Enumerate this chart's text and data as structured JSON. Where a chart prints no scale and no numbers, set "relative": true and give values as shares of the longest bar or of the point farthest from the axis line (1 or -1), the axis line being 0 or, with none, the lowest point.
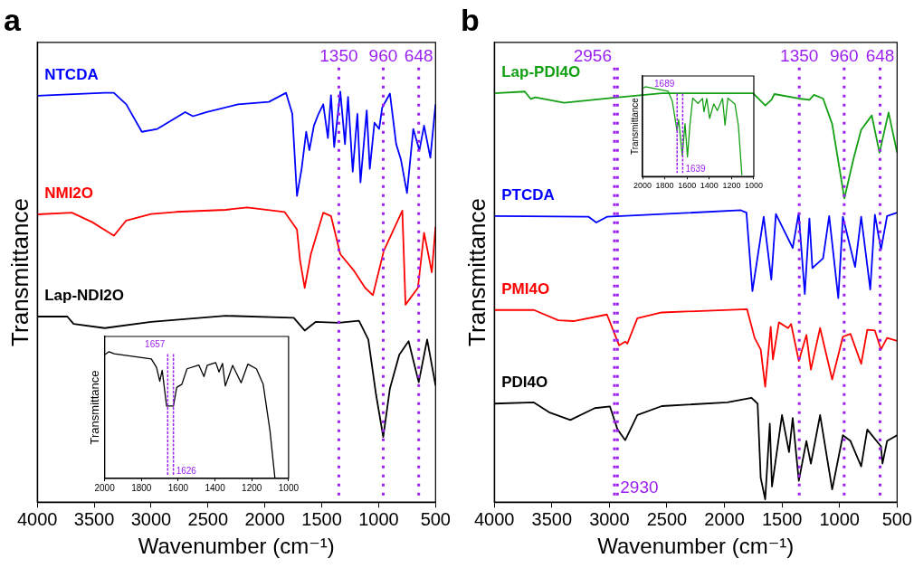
{
  "chart_data": [
    {
      "type": "line",
      "title": "a",
      "xlabel": "Wavenumber (cm⁻¹)",
      "ylabel": "Transmittance",
      "relative": true,
      "tick_labels": "x",
      "legend": false,
      "grid": false,
      "marker": "none",
      "line_style": "solid",
      "xlim": [
        4000,
        500
      ],
      "xticks": [
        4000,
        3500,
        3000,
        2500,
        2000,
        1500,
        1000,
        500
      ],
      "series": [
        {
          "name": "NTCDA",
          "color": "#0000ff",
          "x": [
            4000,
            3408,
            3327,
            3218,
            3081,
            2945,
            2700,
            2632,
            2509,
            2236,
            1964,
            1814,
            1759,
            1718,
            1677,
            1637,
            1609,
            1569,
            1528,
            1487,
            1446,
            1419,
            1391,
            1337,
            1296,
            1269,
            1228,
            1187,
            1160,
            1105,
            1078,
            1037,
            996,
            969,
            901,
            846,
            805,
            751,
            696,
            642,
            601,
            546,
            500
          ],
          "values": [
            0.99,
            0.997,
            0.997,
            0.969,
            0.902,
            0.909,
            0.95,
            0.94,
            0.95,
            0.969,
            0.975,
            0.997,
            0.946,
            0.746,
            0.812,
            0.902,
            0.857,
            0.917,
            0.946,
            0.969,
            0.887,
            0.991,
            0.865,
            1,
            0.872,
            0.987,
            0.805,
            0.946,
            0.779,
            0.954,
            0.812,
            0.924,
            0.909,
            0.961,
            0.995,
            0.872,
            0.835,
            0.753,
            0.909,
            0.857,
            0.917,
            0.839,
            0.969
          ]
        },
        {
          "name": "NMI2O",
          "color": "#ff0000",
          "x": [
            4000,
            3695,
            3517,
            3327,
            3218,
            3000,
            2781,
            2345,
            2155,
            1827,
            1718,
            1691,
            1650,
            1596,
            1487,
            1419,
            1337,
            1215,
            1119,
            1051,
            955,
            792,
            764,
            655,
            601,
            533,
            500
          ],
          "values": [
            0.701,
            0.705,
            0.682,
            0.649,
            0.686,
            0.702,
            0.707,
            0.712,
            0.718,
            0.707,
            0.664,
            0.589,
            0.522,
            0.604,
            0.705,
            0.697,
            0.604,
            0.563,
            0.522,
            0.504,
            0.612,
            0.71,
            0.481,
            0.522,
            0.656,
            0.56,
            0.671
          ]
        },
        {
          "name": "Lap-NDI2O",
          "color": "#000000",
          "x": [
            4000,
            3736,
            3681,
            3408,
            3000,
            2345,
            1746,
            1650,
            1555,
            1351,
            1173,
            1091,
            1023,
            960,
            901,
            819,
            737,
            648,
            574,
            500
          ],
          "values": [
            0.452,
            0.452,
            0.434,
            0.424,
            0.439,
            0.454,
            0.449,
            0.418,
            0.439,
            0.437,
            0.442,
            0.396,
            0.262,
            0.159,
            0.277,
            0.359,
            0.392,
            0.292,
            0.396,
            0.284
          ]
        }
      ],
      "ref_lines": [
        {
          "axis": "x",
          "value": 1350,
          "label": "1350",
          "color": "#9b1ff0",
          "line_style": "dotted"
        },
        {
          "axis": "x",
          "value": 960,
          "label": "960",
          "color": "#9b1ff0",
          "line_style": "dotted"
        },
        {
          "axis": "x",
          "value": 648,
          "label": "648",
          "color": "#9b1ff0",
          "line_style": "dotted"
        }
      ]
    },
    {
      "type": "line",
      "ylabel": "Transmittance",
      "relative": true,
      "tick_labels": "x",
      "legend": false,
      "grid": false,
      "marker": "none",
      "line_style": "solid",
      "xlim": [
        2000,
        1000
      ],
      "xticks": [
        2000,
        1800,
        1600,
        1400,
        1200,
        1000
      ],
      "series": [
        {
          "color": "#000000",
          "x": [
            2000,
            1976,
            1948,
            1746,
            1718,
            1700,
            1687,
            1663,
            1626,
            1608,
            1580,
            1552,
            1488,
            1460,
            1442,
            1396,
            1378,
            1359,
            1344,
            1304,
            1258,
            1221,
            1175,
            1138,
            1101,
            1074
          ],
          "values": [
            0.976,
            1,
            0.983,
            0.943,
            0.877,
            0.767,
            0.853,
            0.571,
            0.571,
            0.718,
            0.743,
            0.865,
            0.895,
            0.804,
            0.892,
            0.914,
            0.84,
            0.907,
            0.73,
            0.892,
            0.755,
            0.902,
            0.865,
            0.743,
            0.375,
            0
          ]
        }
      ],
      "ref_lines": [
        {
          "axis": "x",
          "value": 1657,
          "label": "1657",
          "color": "#9b1ff0",
          "line_style": "dashed"
        },
        {
          "axis": "x",
          "value": 1626,
          "label": "1626",
          "color": "#9b1ff0",
          "line_style": "dashed"
        }
      ]
    },
    {
      "type": "line",
      "title": "b",
      "xlabel": "Wavenumber (cm⁻¹)",
      "ylabel": "Transmittance",
      "relative": true,
      "tick_labels": "x",
      "legend": false,
      "grid": false,
      "marker": "none",
      "line_style": "solid",
      "xlim": [
        4000,
        500
      ],
      "xticks": [
        4000,
        3500,
        3000,
        2500,
        2000,
        1500,
        1000,
        500
      ],
      "series": [
        {
          "name": "Lap-PDI4O",
          "color": "#14a014",
          "x": [
            4000,
            3735,
            3683,
            3643,
            3392,
            2968,
            2545,
            1751,
            1645,
            1592,
            1566,
            1354,
            1262,
            1222,
            1143,
            1064,
            958,
            878,
            812,
            720,
            653,
            574,
            500
          ],
          "values": [
            0.996,
            1,
            0.982,
            0.986,
            0.973,
            0.985,
            0.996,
            0.996,
            0.966,
            0.98,
            0.994,
            0.983,
            0.98,
            0.992,
            0.983,
            0.921,
            0.74,
            0.837,
            0.907,
            0.942,
            0.851,
            0.949,
            0.851
          ]
        },
        {
          "name": "PTCDA",
          "color": "#0000ff",
          "x": [
            4000,
            3180,
            3114,
            3021,
            1857,
            1809,
            1757,
            1659,
            1593,
            1553,
            1407,
            1355,
            1302,
            1262,
            1236,
            1143,
            1090,
            1011,
            971,
            865,
            812,
            733,
            693,
            640,
            587,
            500
          ],
          "values": [
            0.697,
            0.695,
            0.681,
            0.695,
            0.711,
            0.705,
            0.514,
            0.695,
            0.542,
            0.702,
            0.619,
            0.704,
            0.507,
            0.691,
            0.57,
            0.594,
            0.697,
            0.497,
            0.695,
            0.573,
            0.695,
            0.518,
            0.7,
            0.615,
            0.697,
            0.705
          ]
        },
        {
          "name": "PMI4O",
          "color": "#ff0000",
          "x": [
            4000,
            3656,
            3444,
            3312,
            3021,
            2915,
            2862,
            2844,
            2757,
            2545,
            1804,
            1738,
            1685,
            1646,
            1598,
            1579,
            1527,
            1447,
            1421,
            1354,
            1288,
            1249,
            1169,
            1064,
            971,
            905,
            812,
            759,
            693,
            640,
            587,
            500
          ],
          "values": [
            0.468,
            0.468,
            0.443,
            0.441,
            0.457,
            0.382,
            0.391,
            0.386,
            0.448,
            0.462,
            0.47,
            0.4,
            0.372,
            0.281,
            0.427,
            0.348,
            0.438,
            0.424,
            0.434,
            0.344,
            0.407,
            0.323,
            0.424,
            0.299,
            0.403,
            0.41,
            0.337,
            0.42,
            0.418,
            0.372,
            0.4,
            0.393
          ]
        },
        {
          "name": "PDI4O",
          "color": "#000000",
          "x": [
            4000,
            3656,
            3524,
            3339,
            3127,
            2995,
            2929,
            2862,
            2757,
            2545,
            1976,
            1765,
            1712,
            1685,
            1646,
            1606,
            1587,
            1500,
            1439,
            1407,
            1354,
            1288,
            1249,
            1169,
            1064,
            971,
            905,
            812,
            759,
            640,
            627,
            587,
            500
          ],
          "values": [
            0.24,
            0.243,
            0.219,
            0.2,
            0.229,
            0.233,
            0.177,
            0.151,
            0.212,
            0.234,
            0.243,
            0.254,
            0.24,
            0.059,
            0.007,
            0.191,
            0.038,
            0.212,
            0.122,
            0.205,
            0.052,
            0.149,
            0.094,
            0.212,
            0.031,
            0.163,
            0.149,
            0.087,
            0.177,
            0.136,
            0.094,
            0.149,
            0.163
          ]
        }
      ],
      "ref_lines": [
        {
          "axis": "x",
          "value": 2956,
          "label": "2956",
          "color": "#9b1ff0",
          "line_style": "dotted"
        },
        {
          "axis": "x",
          "value": 2930,
          "label": "2930",
          "color": "#9b1ff0",
          "line_style": "dotted"
        },
        {
          "axis": "x",
          "value": 1350,
          "label": "1350",
          "color": "#9b1ff0",
          "line_style": "dotted"
        },
        {
          "axis": "x",
          "value": 960,
          "label": "960",
          "color": "#9b1ff0",
          "line_style": "dotted"
        },
        {
          "axis": "x",
          "value": 648,
          "label": "648",
          "color": "#9b1ff0",
          "line_style": "dotted"
        }
      ]
    },
    {
      "type": "line",
      "ylabel": "Transmittance",
      "relative": true,
      "tick_labels": "x",
      "legend": false,
      "grid": false,
      "marker": "none",
      "line_style": "solid",
      "xlim": [
        2000,
        1000
      ],
      "xticks": [
        2000,
        1800,
        1600,
        1400,
        1200,
        1000
      ],
      "series": [
        {
          "color": "#14a014",
          "x": [
            1991,
            1975,
            1770,
            1732,
            1691,
            1675,
            1643,
            1618,
            1596,
            1574,
            1549,
            1502,
            1461,
            1448,
            1423,
            1397,
            1360,
            1328,
            1281,
            1259,
            1233,
            1170,
            1139,
            1107
          ],
          "values": [
            0.985,
            1,
            0.95,
            0.838,
            0.515,
            0.632,
            0.235,
            0.588,
            0.22,
            0.573,
            0.873,
            0.815,
            0.87,
            0.72,
            0.87,
            0.647,
            0.809,
            0.735,
            0.87,
            0.573,
            0.873,
            0.809,
            0.573,
            0.015
          ]
        }
      ],
      "ref_lines": [
        {
          "axis": "x",
          "value": 1689,
          "label": "1689",
          "color": "#9b1ff0",
          "line_style": "dashed"
        },
        {
          "axis": "x",
          "value": 1639,
          "label": "1639",
          "color": "#9b1ff0",
          "line_style": "dashed"
        }
      ]
    }
  ]
}
